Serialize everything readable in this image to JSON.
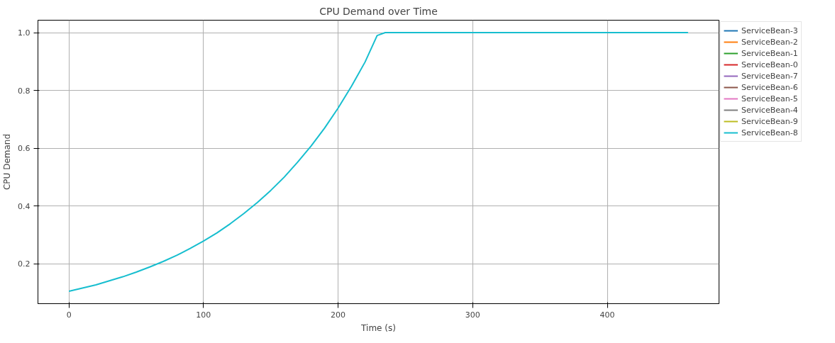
{
  "chart_data": {
    "type": "line",
    "title": "CPU Demand over Time",
    "xlabel": "Time (s)",
    "ylabel": "CPU Demand",
    "x": [
      0,
      10,
      20,
      30,
      40,
      50,
      60,
      70,
      80,
      90,
      100,
      110,
      120,
      130,
      140,
      150,
      160,
      170,
      180,
      190,
      200,
      210,
      220,
      229,
      235,
      460
    ],
    "series": [
      {
        "name": "ServiceBean-3",
        "color": "#1f77b4",
        "values": [
          null,
          null,
          null,
          null,
          null,
          null,
          null,
          null,
          null,
          null,
          null,
          null,
          null,
          null,
          null,
          null,
          null,
          null,
          null,
          null,
          null,
          null,
          null,
          null,
          null,
          null
        ]
      },
      {
        "name": "ServiceBean-2",
        "color": "#ff7f0e",
        "values": [
          null,
          null,
          null,
          null,
          null,
          null,
          null,
          null,
          null,
          null,
          null,
          null,
          null,
          null,
          null,
          null,
          null,
          null,
          null,
          null,
          null,
          null,
          null,
          null,
          null,
          null
        ]
      },
      {
        "name": "ServiceBean-1",
        "color": "#2ca02c",
        "values": [
          null,
          null,
          null,
          null,
          null,
          null,
          null,
          null,
          null,
          null,
          null,
          null,
          null,
          null,
          null,
          null,
          null,
          null,
          null,
          null,
          null,
          null,
          null,
          null,
          null,
          null
        ]
      },
      {
        "name": "ServiceBean-0",
        "color": "#d62728",
        "values": [
          null,
          null,
          null,
          null,
          null,
          null,
          null,
          null,
          null,
          null,
          null,
          null,
          null,
          null,
          null,
          null,
          null,
          null,
          null,
          null,
          null,
          null,
          null,
          null,
          null,
          null
        ]
      },
      {
        "name": "ServiceBean-7",
        "color": "#9467bd",
        "values": [
          null,
          null,
          null,
          null,
          null,
          null,
          null,
          null,
          null,
          null,
          null,
          null,
          null,
          null,
          null,
          null,
          null,
          null,
          null,
          null,
          null,
          null,
          null,
          null,
          null,
          null
        ]
      },
      {
        "name": "ServiceBean-6",
        "color": "#8c564b",
        "values": [
          null,
          null,
          null,
          null,
          null,
          null,
          null,
          null,
          null,
          null,
          null,
          null,
          null,
          null,
          null,
          null,
          null,
          null,
          null,
          null,
          null,
          null,
          null,
          null,
          null,
          null
        ]
      },
      {
        "name": "ServiceBean-5",
        "color": "#e377c2",
        "values": [
          null,
          null,
          null,
          null,
          null,
          null,
          null,
          null,
          null,
          null,
          null,
          null,
          null,
          null,
          null,
          null,
          null,
          null,
          null,
          null,
          null,
          null,
          null,
          null,
          null,
          null
        ]
      },
      {
        "name": "ServiceBean-4",
        "color": "#7f7f7f",
        "values": [
          null,
          null,
          null,
          null,
          null,
          null,
          null,
          null,
          null,
          null,
          null,
          null,
          null,
          null,
          null,
          null,
          null,
          null,
          null,
          null,
          null,
          null,
          null,
          null,
          null,
          null
        ]
      },
      {
        "name": "ServiceBean-9",
        "color": "#bcbd22",
        "values": [
          null,
          null,
          null,
          null,
          null,
          null,
          null,
          null,
          null,
          null,
          null,
          null,
          null,
          null,
          null,
          null,
          null,
          null,
          null,
          null,
          null,
          null,
          null,
          null,
          null,
          null
        ]
      },
      {
        "name": "ServiceBean-8",
        "color": "#17becf",
        "values": [
          0.105,
          0.116,
          0.127,
          0.141,
          0.155,
          0.171,
          0.189,
          0.208,
          0.229,
          0.253,
          0.279,
          0.307,
          0.339,
          0.374,
          0.412,
          0.454,
          0.5,
          0.552,
          0.608,
          0.67,
          0.739,
          0.815,
          0.898,
          0.99,
          1.0,
          1.0
        ]
      }
    ],
    "xlim": [
      -23,
      483
    ],
    "ylim": [
      0.062,
      1.043
    ],
    "xticks": [
      0,
      100,
      200,
      300,
      400
    ],
    "yticks": [
      {
        "value": 0.2,
        "label": "0.2"
      },
      {
        "value": 0.4,
        "label": "0.4"
      },
      {
        "value": 0.6,
        "label": "0.6"
      },
      {
        "value": 0.8,
        "label": "0.8"
      },
      {
        "value": 1.0,
        "label": "1.0"
      }
    ],
    "grid": true,
    "legend": "right"
  }
}
